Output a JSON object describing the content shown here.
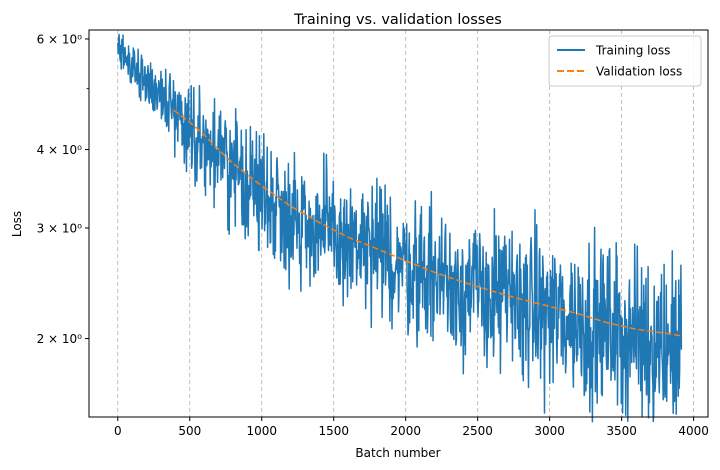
{
  "chart_data": {
    "type": "line",
    "title": "Training vs. validation losses",
    "xlabel": "Batch number",
    "ylabel": "Loss",
    "xlim": [
      -200,
      4100
    ],
    "ylim": [
      1.5,
      6.2
    ],
    "yscale": "log",
    "x_ticks": [
      0,
      500,
      1000,
      1500,
      2000,
      2500,
      3000,
      3500,
      4000
    ],
    "x_tick_labels": [
      "0",
      "500",
      "1000",
      "1500",
      "2000",
      "2500",
      "3000",
      "3500",
      "4000"
    ],
    "y_ticks": [
      {
        "value": 6,
        "label": "6 × 10⁰"
      },
      {
        "value": 4,
        "label": "4 × 10⁰"
      },
      {
        "value": 3,
        "label": "3 × 10⁰"
      },
      {
        "value": 2,
        "label": "2 × 10⁰"
      }
    ],
    "y_minor_ticks": [
      5
    ],
    "grid": "x-dashed",
    "legend_position": "top-right",
    "series": [
      {
        "name": "Training loss",
        "style": "solid",
        "color": "#1f77b4",
        "x_range": [
          0,
          3915
        ],
        "trend_points": [
          [
            0,
            5.75
          ],
          [
            200,
            5.15
          ],
          [
            400,
            4.6
          ],
          [
            600,
            4.1
          ],
          [
            800,
            3.7
          ],
          [
            1000,
            3.42
          ],
          [
            1200,
            3.15
          ],
          [
            1500,
            2.9
          ],
          [
            2000,
            2.62
          ],
          [
            2500,
            2.38
          ],
          [
            3000,
            2.2
          ],
          [
            3500,
            2.05
          ],
          [
            3915,
            1.95
          ]
        ],
        "noise_amplitude": [
          [
            0,
            0.03
          ],
          [
            500,
            0.08
          ],
          [
            1000,
            0.11
          ],
          [
            2000,
            0.12
          ],
          [
            3000,
            0.14
          ],
          [
            3915,
            0.16
          ]
        ]
      },
      {
        "name": "Validation loss",
        "style": "dashed",
        "color": "#ff7f0e",
        "x": [
          390,
          500,
          600,
          700,
          800,
          1000,
          1200,
          1400,
          1600,
          1800,
          2000,
          2200,
          2400,
          2600,
          2800,
          3000,
          3200,
          3400,
          3600,
          3800,
          3915
        ],
        "values": [
          4.62,
          4.42,
          4.22,
          4.0,
          3.8,
          3.5,
          3.25,
          3.06,
          2.9,
          2.78,
          2.66,
          2.55,
          2.46,
          2.38,
          2.31,
          2.25,
          2.19,
          2.12,
          2.07,
          2.04,
          2.02
        ]
      }
    ]
  }
}
